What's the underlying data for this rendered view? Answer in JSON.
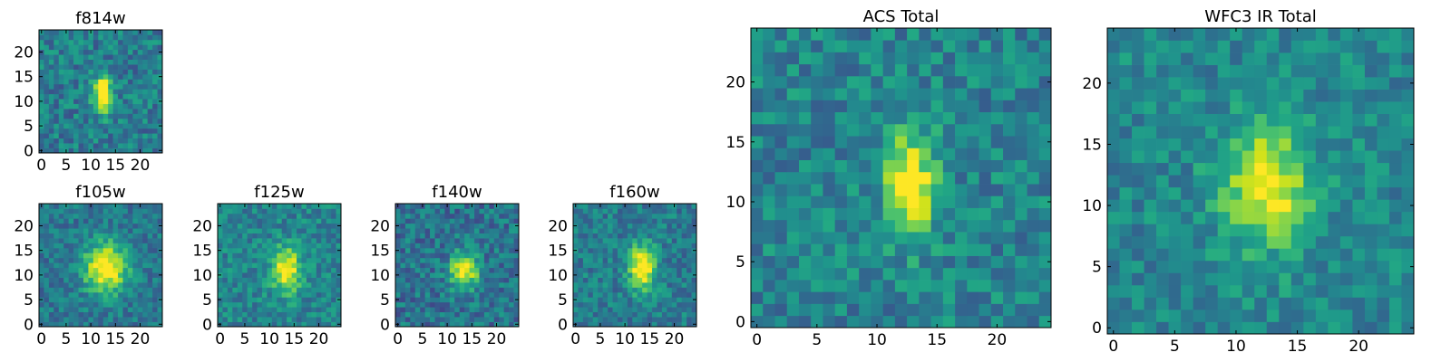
{
  "chart_data": [
    {
      "type": "heatmap",
      "title": "f814w",
      "colormap": "viridis",
      "grid_size": 25,
      "xticks": [
        0,
        5,
        10,
        15,
        20
      ],
      "yticks": [
        0,
        5,
        10,
        15,
        20
      ],
      "xlim": [
        -0.5,
        24.5
      ],
      "ylim": [
        -0.5,
        24.5
      ],
      "source": {
        "cx": 12.5,
        "cy": 11.5,
        "sx": 1.3,
        "sy": 2.6,
        "peak": 0.75,
        "noise": 0.17,
        "base": 0.42,
        "seed": 11
      }
    },
    {
      "type": "heatmap",
      "title": "f105w",
      "colormap": "viridis",
      "grid_size": 25,
      "xticks": [
        0,
        5,
        10,
        15,
        20
      ],
      "yticks": [
        0,
        5,
        10,
        15,
        20
      ],
      "xlim": [
        -0.5,
        24.5
      ],
      "ylim": [
        -0.5,
        24.5
      ],
      "source": {
        "cx": 13,
        "cy": 11.5,
        "sx": 3.0,
        "sy": 3.5,
        "peak": 0.7,
        "noise": 0.14,
        "base": 0.4,
        "seed": 23
      }
    },
    {
      "type": "heatmap",
      "title": "f125w",
      "colormap": "viridis",
      "grid_size": 25,
      "xticks": [
        0,
        5,
        10,
        15,
        20
      ],
      "yticks": [
        0,
        5,
        10,
        15,
        20
      ],
      "xlim": [
        -0.5,
        24.5
      ],
      "ylim": [
        -0.5,
        24.5
      ],
      "source": {
        "cx": 13.5,
        "cy": 11,
        "sx": 2.0,
        "sy": 3.2,
        "peak": 0.6,
        "noise": 0.15,
        "base": 0.45,
        "seed": 37
      }
    },
    {
      "type": "heatmap",
      "title": "f140w",
      "colormap": "viridis",
      "grid_size": 25,
      "xticks": [
        0,
        5,
        10,
        15,
        20
      ],
      "yticks": [
        0,
        5,
        10,
        15,
        20
      ],
      "xlim": [
        -0.5,
        24.5
      ],
      "ylim": [
        -0.5,
        24.5
      ],
      "source": {
        "cx": 13.5,
        "cy": 11,
        "sx": 2.0,
        "sy": 2.6,
        "peak": 0.65,
        "noise": 0.17,
        "base": 0.38,
        "seed": 41
      }
    },
    {
      "type": "heatmap",
      "title": "f160w",
      "colormap": "viridis",
      "grid_size": 25,
      "xticks": [
        0,
        5,
        10,
        15,
        20
      ],
      "yticks": [
        0,
        5,
        10,
        15,
        20
      ],
      "xlim": [
        -0.5,
        24.5
      ],
      "ylim": [
        -0.5,
        24.5
      ],
      "source": {
        "cx": 13.5,
        "cy": 11.5,
        "sx": 1.8,
        "sy": 3.2,
        "peak": 0.7,
        "noise": 0.15,
        "base": 0.42,
        "seed": 53
      }
    },
    {
      "type": "heatmap",
      "title": "ACS Total",
      "colormap": "viridis",
      "grid_size": 25,
      "xticks": [
        0,
        5,
        10,
        15,
        20
      ],
      "yticks": [
        0,
        5,
        10,
        15,
        20
      ],
      "xlim": [
        -0.5,
        24.5
      ],
      "ylim": [
        -0.5,
        24.5
      ],
      "source": {
        "cx": 12.8,
        "cy": 11.5,
        "sx": 1.5,
        "sy": 3.0,
        "peak": 0.62,
        "noise": 0.16,
        "base": 0.45,
        "seed": 67
      }
    },
    {
      "type": "heatmap",
      "title": "WFC3 IR Total",
      "colormap": "viridis",
      "grid_size": 25,
      "xticks": [
        0,
        5,
        10,
        15,
        20
      ],
      "yticks": [
        0,
        5,
        10,
        15,
        20
      ],
      "xlim": [
        -0.5,
        24.5
      ],
      "ylim": [
        -0.5,
        24.5
      ],
      "source": {
        "cx": 12.5,
        "cy": 11.5,
        "sx": 2.5,
        "sy": 3.4,
        "peak": 0.55,
        "noise": 0.14,
        "base": 0.46,
        "seed": 79
      }
    }
  ]
}
